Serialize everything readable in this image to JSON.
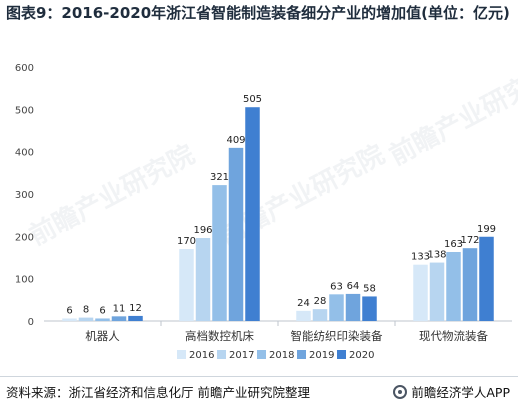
{
  "title": "图表9：2016-2020年浙江省智能制造装备细分产业的增加值(单位：亿元)",
  "source": "资料来源：浙江省经济和信息化厅 前瞻产业研究院整理",
  "brand": "前瞻经济学人APP",
  "watermark": "前瞻产业研究院",
  "chart_data": {
    "type": "bar",
    "title": "",
    "xlabel": "",
    "ylabel": "",
    "ylim": [
      0,
      600
    ],
    "yticks": [
      0,
      100,
      200,
      300,
      400,
      500,
      600
    ],
    "grid": false,
    "legend_position": "bottom",
    "categories": [
      "机器人",
      "高档数控机床",
      "智能纺织印染装备",
      "现代物流装备"
    ],
    "series": [
      {
        "name": "2016",
        "color": "#d6e8f8",
        "values": [
          6,
          170,
          24,
          133
        ]
      },
      {
        "name": "2017",
        "color": "#b7d5f0",
        "values": [
          8,
          196,
          28,
          138
        ]
      },
      {
        "name": "2018",
        "color": "#93bfe8",
        "values": [
          6,
          321,
          63,
          163
        ]
      },
      {
        "name": "2019",
        "color": "#6fa4dd",
        "values": [
          11,
          409,
          64,
          172
        ]
      },
      {
        "name": "2020",
        "color": "#3f7fd1",
        "values": [
          12,
          505,
          58,
          199
        ]
      }
    ]
  }
}
